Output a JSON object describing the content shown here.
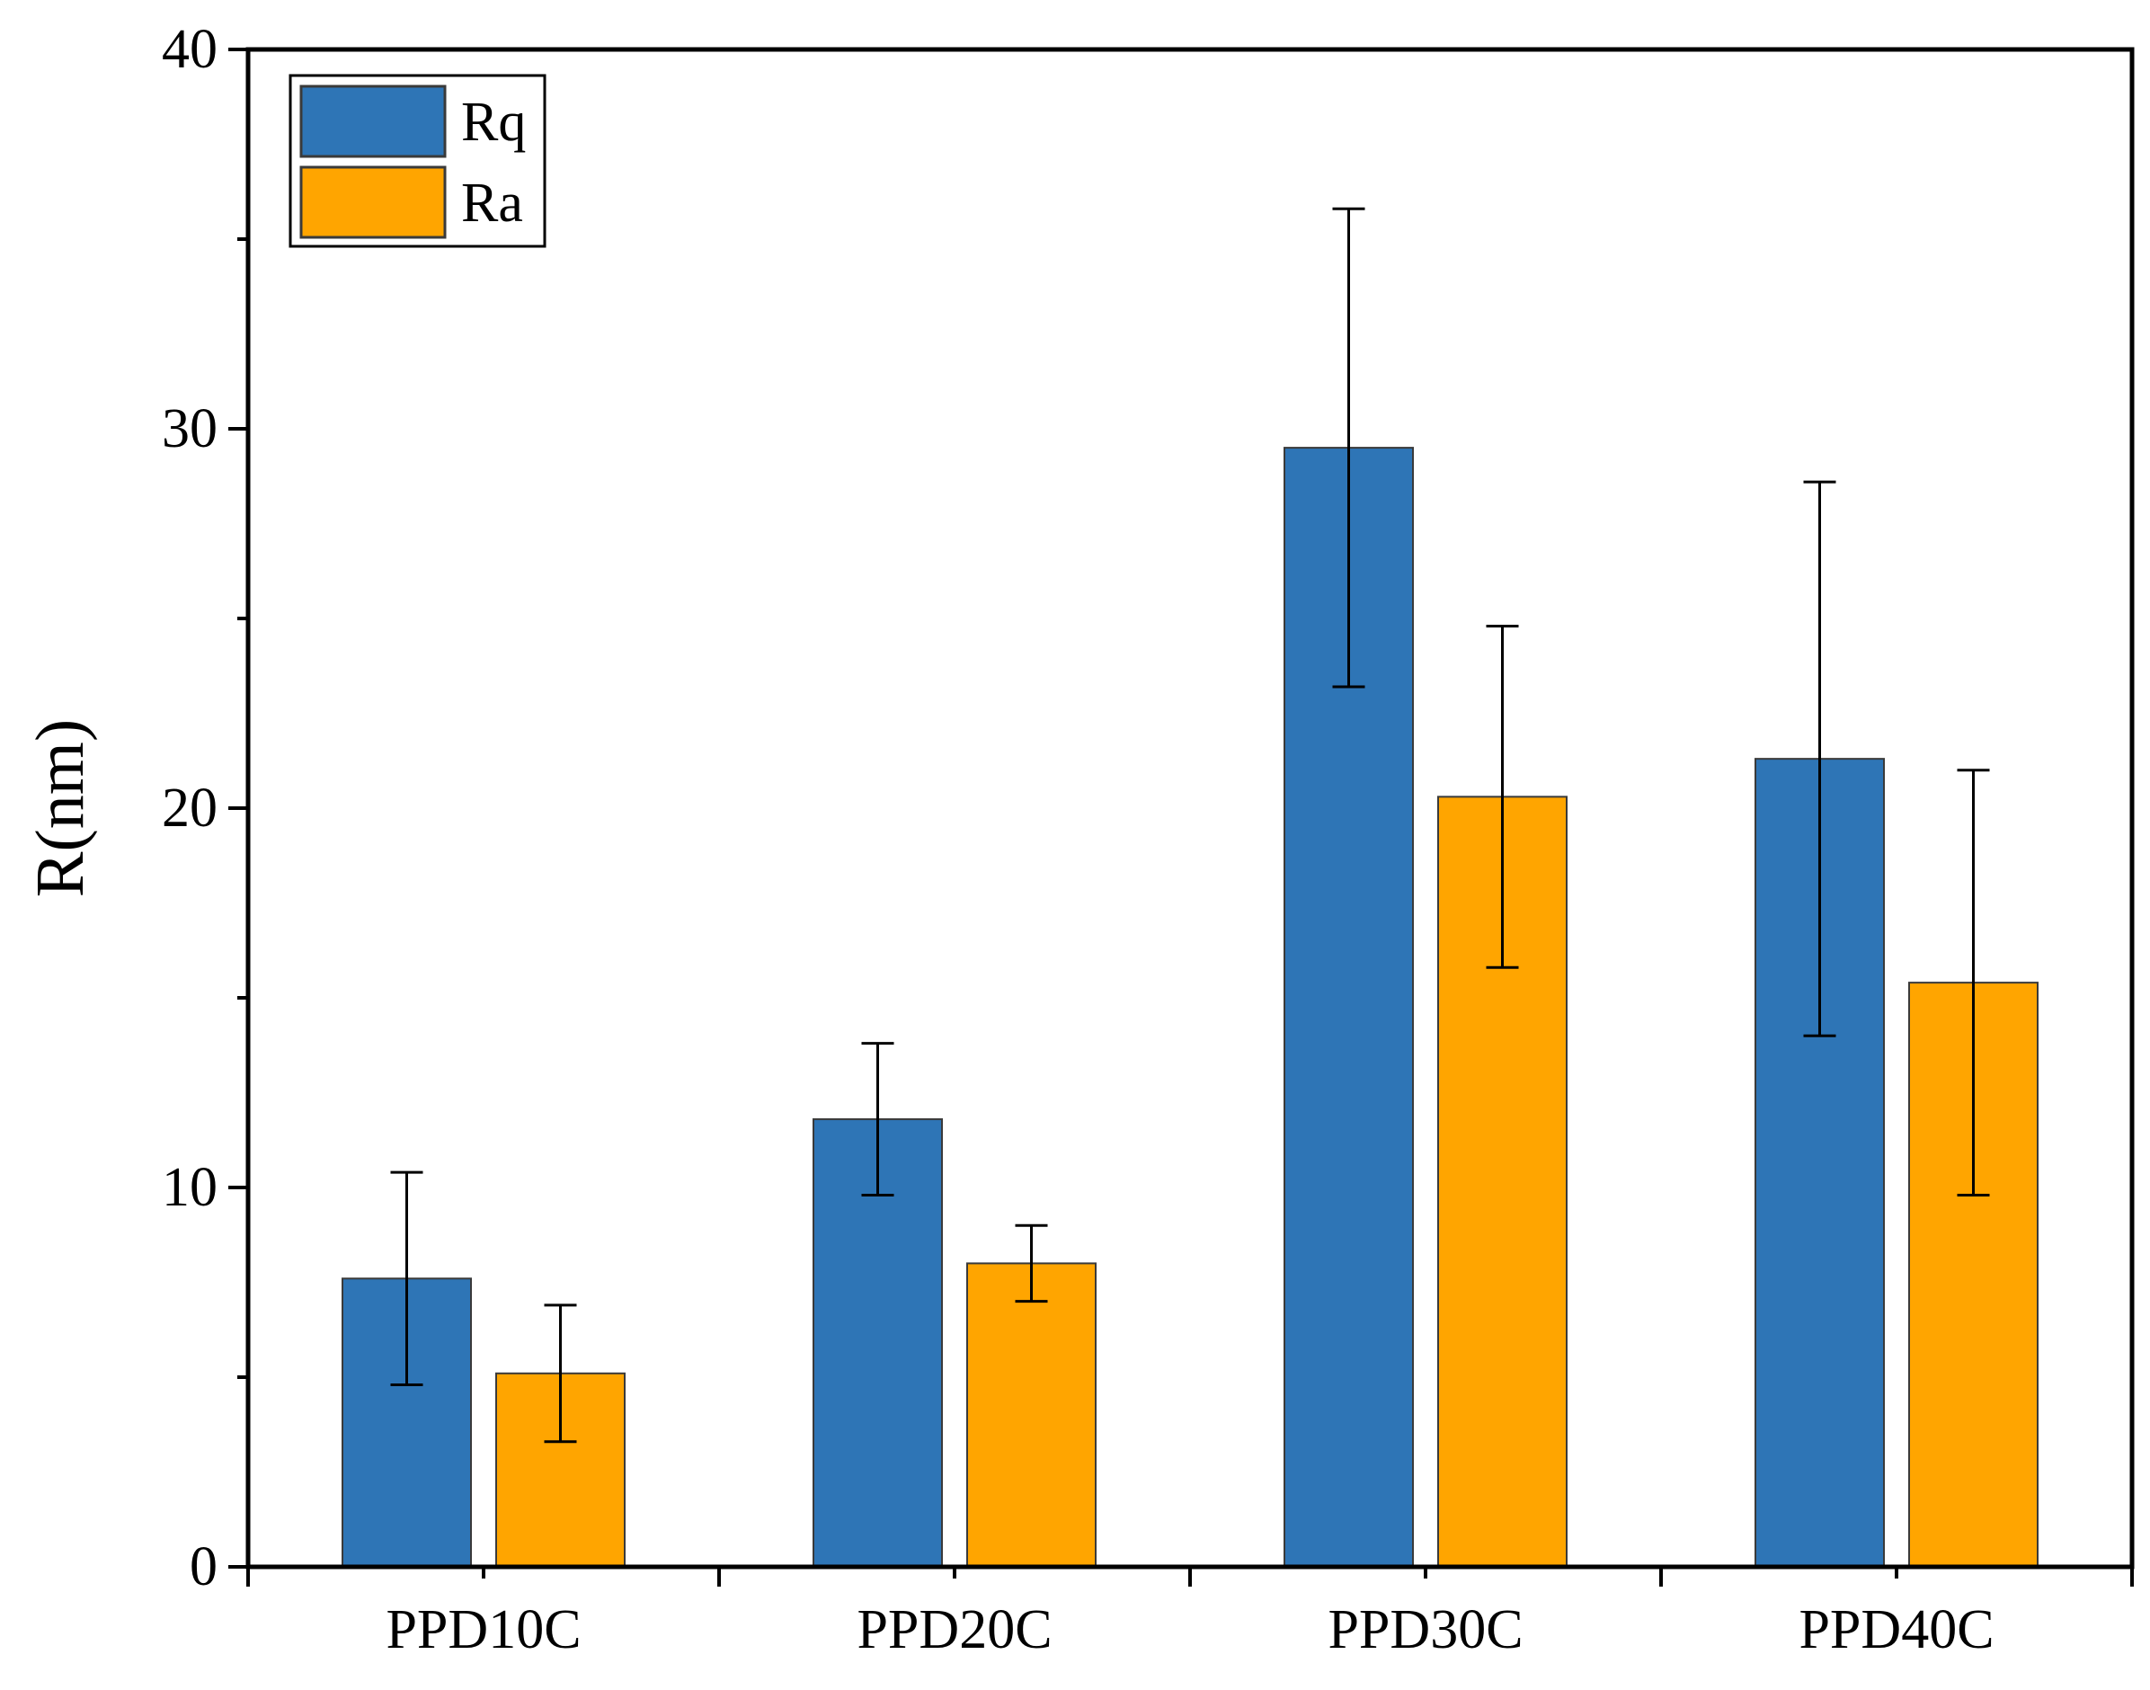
{
  "chart_data": {
    "type": "bar",
    "title": "",
    "xlabel": "",
    "ylabel": "R(nm)",
    "ylim": [
      0,
      40
    ],
    "yticks": [
      0,
      10,
      20,
      30,
      40
    ],
    "categories": [
      "PPD10C",
      "PPD20C",
      "PPD30C",
      "PPD40C"
    ],
    "series": [
      {
        "name": "Rq",
        "color": "#2e75b6",
        "values": [
          7.6,
          11.8,
          29.5,
          21.3
        ],
        "errors": [
          2.8,
          2.0,
          6.3,
          7.3
        ]
      },
      {
        "name": "Ra",
        "color": "#ffa500",
        "values": [
          5.1,
          8.0,
          20.3,
          15.4
        ],
        "errors": [
          1.8,
          1.0,
          4.5,
          5.6
        ]
      }
    ],
    "legend_position": "top-left",
    "grid": false
  }
}
